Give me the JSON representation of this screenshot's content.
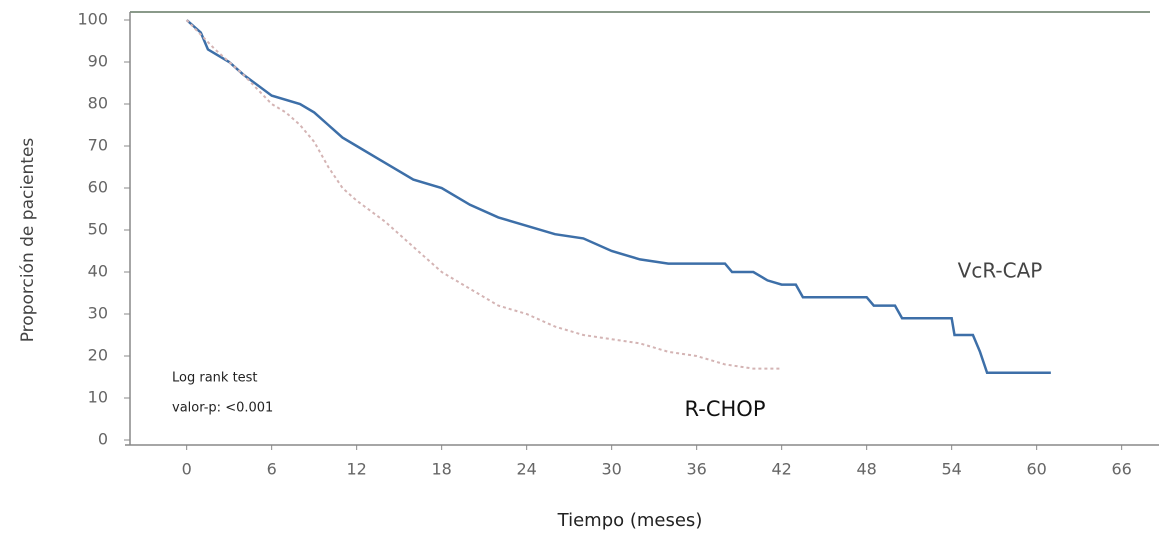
{
  "chart_data": {
    "type": "line",
    "y_label": "Proporción de pacientes",
    "x_label": "Tiempo (meses)",
    "annotations": [
      "Log rank test",
      "valor-p: <0.001"
    ],
    "xlim": [
      -4,
      68
    ],
    "ylim": [
      0,
      100
    ],
    "xticks": [
      0,
      6,
      12,
      18,
      24,
      30,
      36,
      42,
      48,
      54,
      60,
      66
    ],
    "yticks": [
      0,
      10,
      20,
      30,
      40,
      50,
      60,
      70,
      80,
      90,
      100
    ],
    "series": [
      {
        "name": "VcR-CAP",
        "color": "#3d6fa8",
        "x": [
          0,
          1,
          1.5,
          3,
          4,
          6,
          8,
          9,
          10,
          11,
          12,
          14,
          16,
          18,
          20,
          22,
          24,
          26,
          28,
          30,
          32,
          34,
          38,
          38.5,
          40,
          41,
          42,
          43,
          43.5,
          48,
          48.5,
          50,
          50.5,
          54,
          54.2,
          55.5,
          56,
          56.5,
          61
        ],
        "values": [
          100,
          97,
          93,
          90,
          87,
          82,
          80,
          78,
          75,
          72,
          70,
          66,
          62,
          60,
          56,
          53,
          51,
          49,
          48,
          45,
          43,
          42,
          42,
          40,
          40,
          38,
          37,
          37,
          34,
          34,
          32,
          32,
          29,
          29,
          25,
          25,
          21,
          16,
          16
        ]
      },
      {
        "name": "R-CHOP",
        "color": "#d4b4b4",
        "x": [
          0,
          2,
          4,
          6,
          7,
          8,
          9,
          10,
          11,
          12,
          14,
          16,
          18,
          20,
          22,
          24,
          26,
          28,
          30,
          32,
          34,
          36,
          38,
          40,
          42
        ],
        "values": [
          100,
          93,
          87,
          80,
          78,
          75,
          71,
          65,
          60,
          57,
          52,
          46,
          40,
          36,
          32,
          30,
          27,
          25,
          24,
          23,
          21,
          20,
          18,
          17,
          17
        ]
      }
    ]
  }
}
